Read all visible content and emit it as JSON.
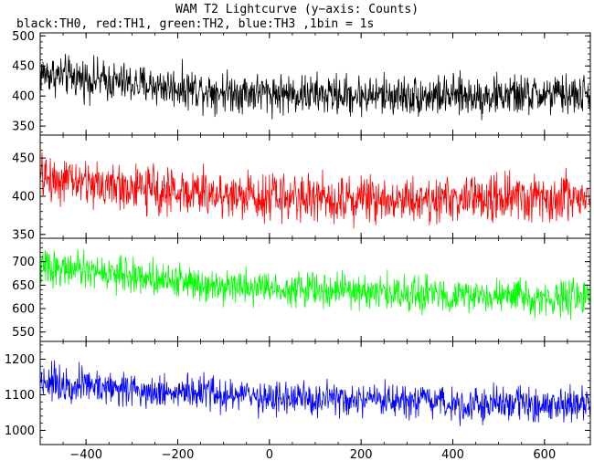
{
  "title": "WAM T2 Lightcurve (y−axis: Counts)",
  "subtitle": "black:TH0, red:TH1, green:TH2, blue:TH3 ,1bin = 1s",
  "chart_data": [
    {
      "type": "line",
      "name": "TH0",
      "color": "#000000",
      "xlim": [
        -500,
        700
      ],
      "ylim": [
        335,
        505
      ],
      "yticks": [
        350,
        400,
        450,
        500
      ],
      "trend": [
        [
          -500,
          438
        ],
        [
          -300,
          420
        ],
        [
          -100,
          408
        ],
        [
          100,
          402
        ],
        [
          400,
          400
        ],
        [
          700,
          402
        ]
      ],
      "noise": 22,
      "x_start": -500,
      "x_end": 700,
      "bin": 1,
      "xlabel": "",
      "ylabel": ""
    },
    {
      "type": "line",
      "name": "TH1",
      "color": "#ff0000",
      "xlim": [
        -500,
        700
      ],
      "ylim": [
        345,
        480
      ],
      "yticks": [
        350,
        400,
        450
      ],
      "trend": [
        [
          -500,
          425
        ],
        [
          -300,
          410
        ],
        [
          -100,
          402
        ],
        [
          100,
          398
        ],
        [
          400,
          396
        ],
        [
          700,
          398
        ]
      ],
      "noise": 20,
      "x_start": -500,
      "x_end": 700,
      "bin": 1,
      "xlabel": "",
      "ylabel": ""
    },
    {
      "type": "line",
      "name": "TH2",
      "color": "#00ff00",
      "xlim": [
        -500,
        700
      ],
      "ylim": [
        530,
        750
      ],
      "yticks": [
        550,
        600,
        650,
        700
      ],
      "trend": [
        [
          -500,
          690
        ],
        [
          -300,
          670
        ],
        [
          -100,
          650
        ],
        [
          100,
          640
        ],
        [
          400,
          628
        ],
        [
          700,
          620
        ]
      ],
      "noise": 24,
      "x_start": -500,
      "x_end": 700,
      "bin": 1,
      "xlabel": "",
      "ylabel": ""
    },
    {
      "type": "line",
      "name": "TH3",
      "color": "#0000ff",
      "xlim": [
        -500,
        700
      ],
      "ylim": [
        960,
        1250
      ],
      "yticks": [
        1000,
        1100,
        1200
      ],
      "trend": [
        [
          -500,
          1140
        ],
        [
          -300,
          1115
        ],
        [
          -100,
          1100
        ],
        [
          100,
          1085
        ],
        [
          400,
          1075
        ],
        [
          700,
          1072
        ]
      ],
      "noise": 32,
      "x_start": -500,
      "x_end": 700,
      "bin": 1,
      "xlabel": "",
      "ylabel": ""
    }
  ],
  "x_axis": {
    "ticks": [
      -400,
      -200,
      0,
      200,
      400,
      600
    ],
    "tick_labels": [
      "−400",
      "−200",
      "0",
      "200",
      "400",
      "600"
    ],
    "minor_step": 50
  }
}
